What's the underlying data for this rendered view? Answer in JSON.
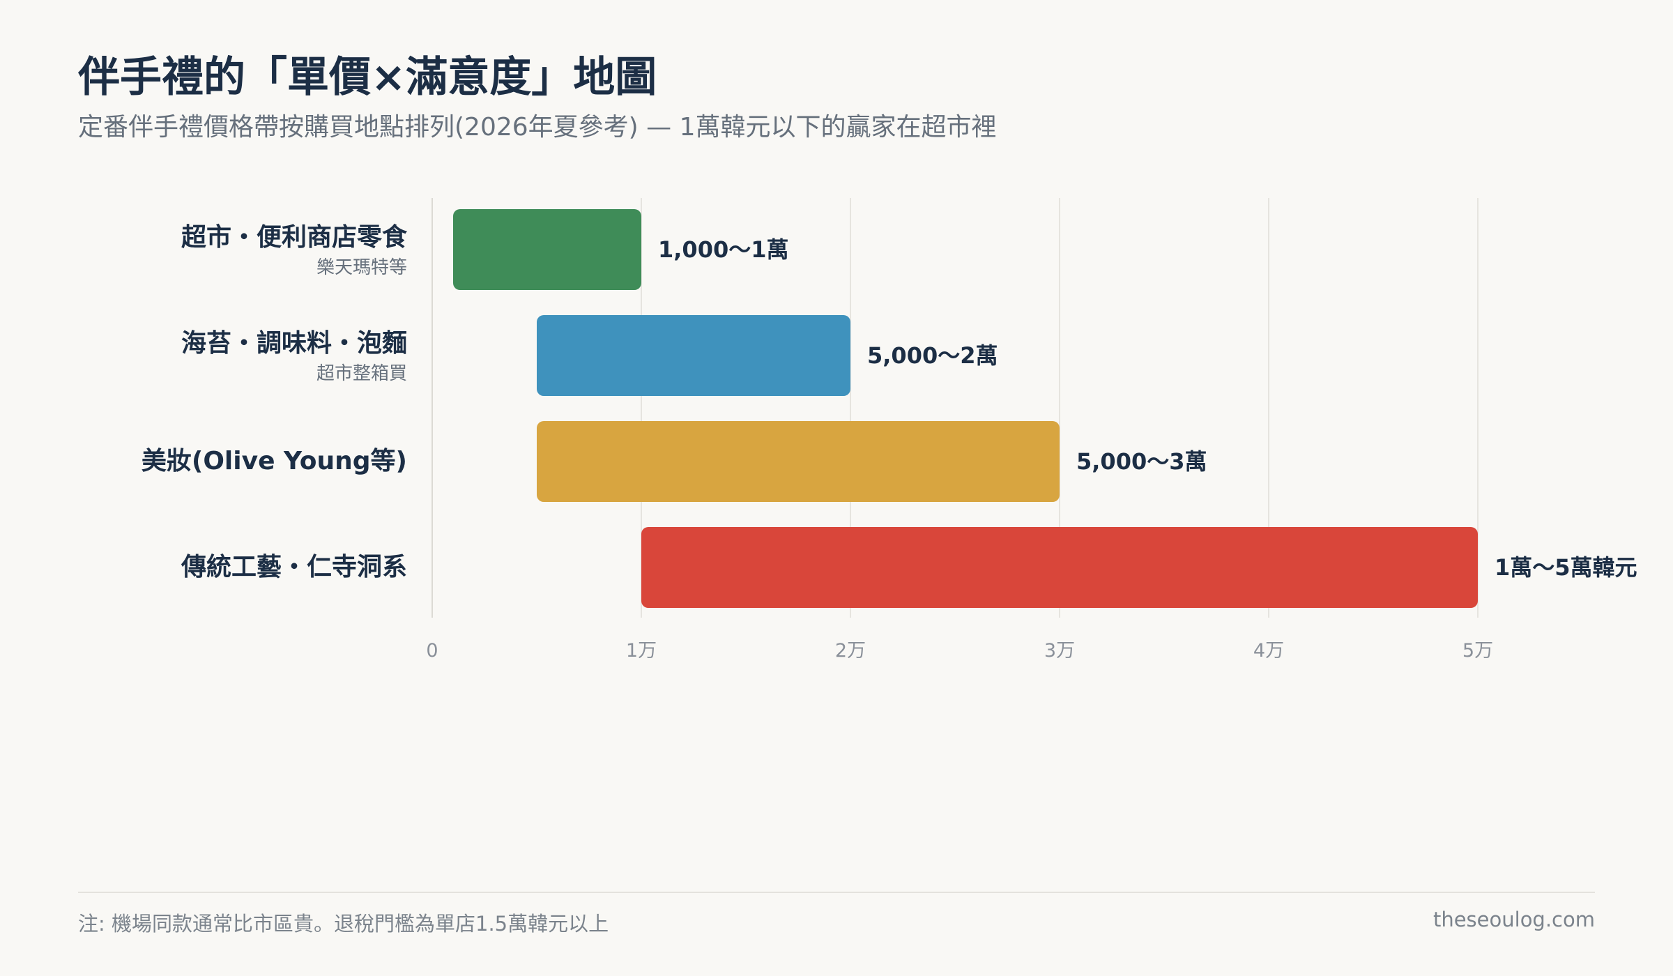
{
  "title": "伴手禮的「單價×滿意度」地圖",
  "subtitle": "定番伴手禮價格帶按購買地點排列(2026年夏參考) — 1萬韓元以下的贏家在超市裡",
  "footer": {
    "note": "注: 機場同款通常比市區貴。退稅門檻為單店1.5萬韓元以上",
    "site": "theseoulog.com"
  },
  "chart_data": {
    "type": "bar",
    "orientation": "horizontal",
    "subtype": "floating-range",
    "categories": [
      {
        "label": "超市・便利商店零食",
        "sublabel": "樂天瑪特等"
      },
      {
        "label": "海苔・調味料・泡麵",
        "sublabel": "超市整箱買"
      },
      {
        "label": "美妝(Olive Young等)",
        "sublabel": ""
      },
      {
        "label": "傳統工藝・仁寺洞系",
        "sublabel": ""
      }
    ],
    "ranges": [
      {
        "min": 1000,
        "max": 10000,
        "label": "1,000〜1萬",
        "color": "#3f8c58"
      },
      {
        "min": 5000,
        "max": 20000,
        "label": "5,000〜2萬",
        "color": "#3f92bd"
      },
      {
        "min": 5000,
        "max": 30000,
        "label": "5,000〜3萬",
        "color": "#d8a540"
      },
      {
        "min": 10000,
        "max": 50000,
        "label": "1萬〜5萬韓元",
        "color": "#d9463a"
      }
    ],
    "xlim": [
      0,
      50000
    ],
    "xticks": [
      {
        "value": 0,
        "label": "0"
      },
      {
        "value": 10000,
        "label": "1万"
      },
      {
        "value": 20000,
        "label": "2万"
      },
      {
        "value": 30000,
        "label": "3万"
      },
      {
        "value": 40000,
        "label": "4万"
      },
      {
        "value": 50000,
        "label": "5万"
      }
    ],
    "grid": true,
    "legend": "none"
  }
}
